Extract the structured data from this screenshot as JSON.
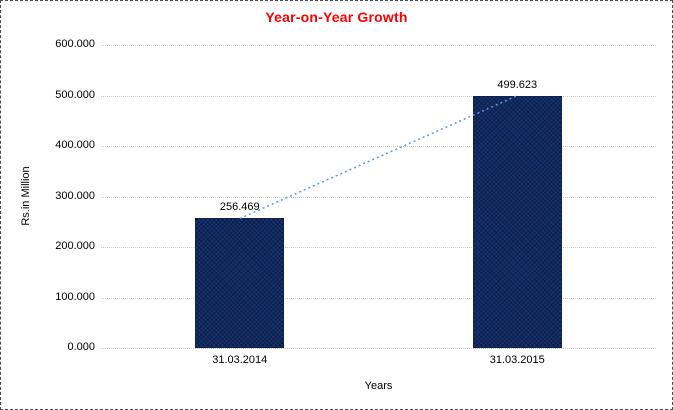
{
  "chart_data": {
    "type": "bar",
    "title": "Year-on-Year Growth",
    "xlabel": "Years",
    "ylabel": "Rs.in Million",
    "categories": [
      "31.03.2014",
      "31.03.2015"
    ],
    "values": [
      256.469,
      499.623
    ],
    "data_labels": [
      "256.469",
      "499.623"
    ],
    "ylim": [
      0,
      600
    ],
    "ytick_step": 100,
    "ytick_labels": [
      "0.000",
      "100.000",
      "200.000",
      "300.000",
      "400.000",
      "500.000",
      "600.000"
    ],
    "grid": true,
    "legend_position": "none",
    "trendline": {
      "style": "dotted",
      "connects": "bar-tops"
    },
    "colors": {
      "title": "#ff0000",
      "bar_fill": "#163272",
      "bar_border": "#0e2150",
      "trendline": "#5b9bd5",
      "gridline": "#c9c9c9",
      "text": "#000000",
      "background": "#ffffff",
      "frame_border": "#4a4a4a"
    }
  }
}
